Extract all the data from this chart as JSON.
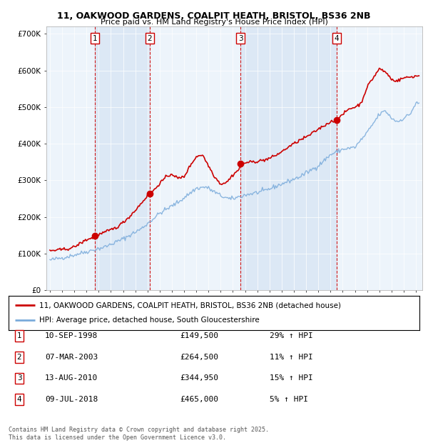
{
  "title_line1": "11, OAKWOOD GARDENS, COALPIT HEATH, BRISTOL, BS36 2NB",
  "title_line2": "Price paid vs. HM Land Registry's House Price Index (HPI)",
  "y_label_vals": [
    0,
    100000,
    200000,
    300000,
    400000,
    500000,
    600000,
    700000
  ],
  "y_label_strs": [
    "£0",
    "£100K",
    "£200K",
    "£300K",
    "£400K",
    "£500K",
    "£600K",
    "£700K"
  ],
  "ylim": [
    0,
    720000
  ],
  "xlim_start": 1994.7,
  "xlim_end": 2025.5,
  "sale_dates": [
    1998.69,
    2003.18,
    2010.62,
    2018.52
  ],
  "sale_prices": [
    149500,
    264500,
    344950,
    465000
  ],
  "sale_labels": [
    "1",
    "2",
    "3",
    "4"
  ],
  "legend_line1": "11, OAKWOOD GARDENS, COALPIT HEATH, BRISTOL, BS36 2NB (detached house)",
  "legend_line2": "HPI: Average price, detached house, South Gloucestershire",
  "table_entries": [
    {
      "num": "1",
      "date": "10-SEP-1998",
      "price": "£149,500",
      "hpi": "29% ↑ HPI"
    },
    {
      "num": "2",
      "date": "07-MAR-2003",
      "price": "£264,500",
      "hpi": "11% ↑ HPI"
    },
    {
      "num": "3",
      "date": "13-AUG-2010",
      "price": "£344,950",
      "hpi": "15% ↑ HPI"
    },
    {
      "num": "4",
      "date": "09-JUL-2018",
      "price": "£465,000",
      "hpi": "5% ↑ HPI"
    }
  ],
  "footer": "Contains HM Land Registry data © Crown copyright and database right 2025.\nThis data is licensed under the Open Government Licence v3.0.",
  "red_color": "#cc0000",
  "blue_color": "#7aabdb",
  "band_color_dark": "#dce8f5",
  "band_color_light": "#edf4fb",
  "background_plot": "#edf4fb",
  "background_fig": "#ffffff"
}
